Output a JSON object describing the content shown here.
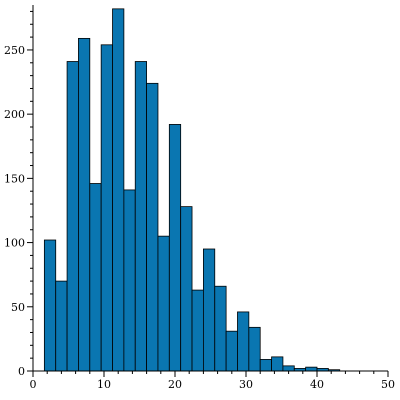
{
  "chart_data": {
    "type": "bar",
    "title": "",
    "xlabel": "",
    "ylabel": "",
    "xlim": [
      0,
      50
    ],
    "ylim": [
      0,
      285
    ],
    "grid": false,
    "legend": "none",
    "bar_color": "#0a76b1",
    "x_ticks": [
      0,
      10,
      20,
      30,
      40,
      50
    ],
    "y_ticks": [
      0,
      50,
      100,
      150,
      200,
      250
    ],
    "x_tick_labels": [
      "0",
      "10",
      "20",
      "30",
      "40",
      "50"
    ],
    "y_tick_labels": [
      "0",
      "50",
      "100",
      "150",
      "200",
      "250"
    ],
    "bins": [
      {
        "start": 1.6,
        "end": 3.2,
        "value": 102
      },
      {
        "start": 3.2,
        "end": 4.8,
        "value": 70
      },
      {
        "start": 4.8,
        "end": 6.4,
        "value": 241
      },
      {
        "start": 6.4,
        "end": 8.0,
        "value": 259
      },
      {
        "start": 8.0,
        "end": 9.6,
        "value": 146
      },
      {
        "start": 9.6,
        "end": 11.2,
        "value": 254
      },
      {
        "start": 11.2,
        "end": 12.8,
        "value": 282
      },
      {
        "start": 12.8,
        "end": 14.4,
        "value": 141
      },
      {
        "start": 14.4,
        "end": 16.0,
        "value": 241
      },
      {
        "start": 16.0,
        "end": 17.6,
        "value": 224
      },
      {
        "start": 17.6,
        "end": 19.2,
        "value": 105
      },
      {
        "start": 19.2,
        "end": 20.8,
        "value": 192
      },
      {
        "start": 20.8,
        "end": 22.4,
        "value": 128
      },
      {
        "start": 22.4,
        "end": 24.0,
        "value": 63
      },
      {
        "start": 24.0,
        "end": 25.6,
        "value": 95
      },
      {
        "start": 25.6,
        "end": 27.2,
        "value": 66
      },
      {
        "start": 27.2,
        "end": 28.8,
        "value": 31
      },
      {
        "start": 28.8,
        "end": 30.4,
        "value": 46
      },
      {
        "start": 30.4,
        "end": 32.0,
        "value": 34
      },
      {
        "start": 32.0,
        "end": 33.6,
        "value": 9
      },
      {
        "start": 33.6,
        "end": 35.2,
        "value": 11
      },
      {
        "start": 35.2,
        "end": 36.8,
        "value": 4
      },
      {
        "start": 36.8,
        "end": 38.4,
        "value": 2
      },
      {
        "start": 38.4,
        "end": 40.0,
        "value": 3
      },
      {
        "start": 40.0,
        "end": 41.6,
        "value": 2
      },
      {
        "start": 41.6,
        "end": 43.2,
        "value": 1
      },
      {
        "start": 43.2,
        "end": 44.8,
        "value": 0
      }
    ]
  }
}
